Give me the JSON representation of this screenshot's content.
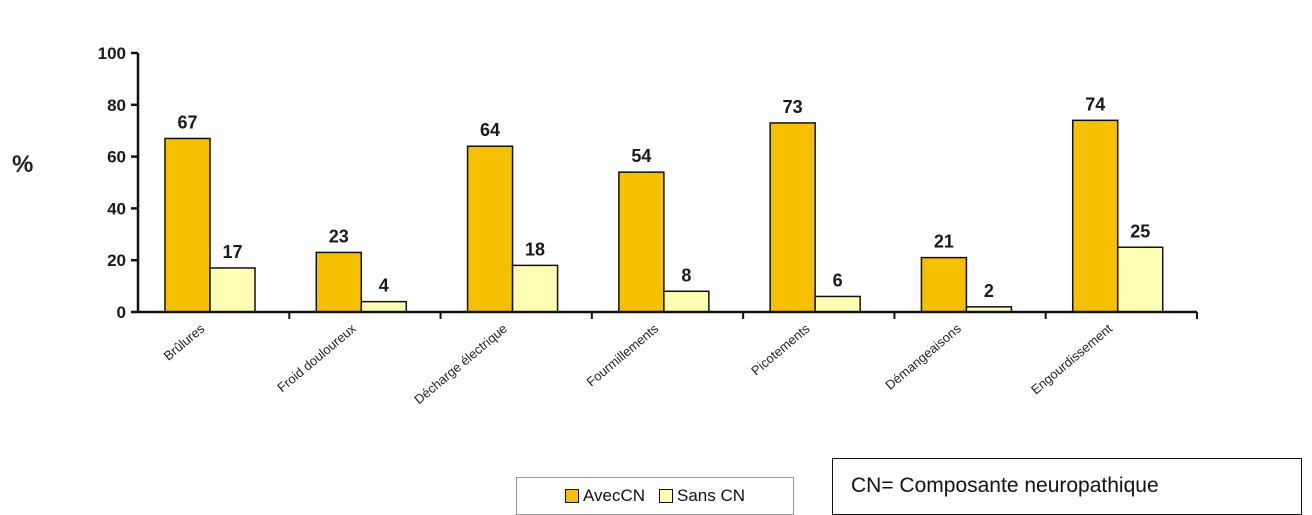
{
  "chart_data": {
    "type": "bar",
    "ylabel": "%",
    "xlabel": "",
    "ylim": [
      0,
      100
    ],
    "yticks": [
      0,
      20,
      40,
      60,
      80,
      100
    ],
    "categories": [
      "Brûlures",
      "Froid douloureux",
      "Décharge électrique",
      "Fourmillements",
      "Picotements",
      "Démangeaisons",
      "Engourdissement"
    ],
    "series": [
      {
        "name": "AvecCN",
        "values": [
          67,
          23,
          64,
          54,
          73,
          21,
          74
        ],
        "color": "#f5c000"
      },
      {
        "name": "Sans CN",
        "values": [
          17,
          4,
          18,
          8,
          6,
          2,
          25
        ],
        "color": "#ffffb3"
      }
    ],
    "legend_position": "bottom"
  },
  "note": {
    "text": "CN= Composante neuropathique"
  }
}
